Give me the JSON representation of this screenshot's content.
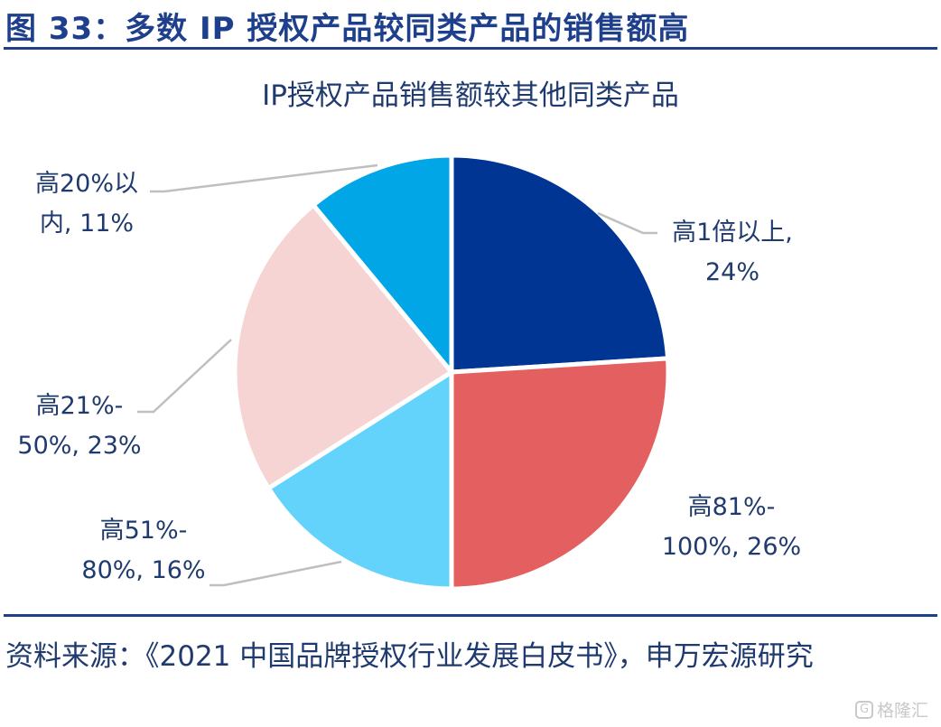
{
  "figure": {
    "title": "图 33：多数 IP 授权产品较同类产品的销售额高"
  },
  "chart_data": {
    "type": "pie",
    "title": "IP授权产品销售额较其他同类产品",
    "slices": [
      {
        "category": "高1倍以上",
        "value": 24,
        "label_line1": "高1倍以上,",
        "label_line2": "24%",
        "color": "#003594"
      },
      {
        "category": "高81%-100%",
        "value": 26,
        "label_line1": "高81%-",
        "label_line2": "100%, 26%",
        "color": "#e46060"
      },
      {
        "category": "高51%-80%",
        "value": 16,
        "label_line1": "高51%-",
        "label_line2": "80%, 16%",
        "color": "#63d3fb"
      },
      {
        "category": "高21%-50%",
        "value": 23,
        "label_line1": "高21%-",
        "label_line2": "50%, 23%",
        "color": "#f7d4d4"
      },
      {
        "category": "高20%以内",
        "value": 11,
        "label_line1": "高20%以",
        "label_line2": "内, 11%",
        "color": "#00a6e6"
      }
    ],
    "start_angle_deg": 0,
    "direction": "clockwise",
    "leader_line_color": "#bfbfbf"
  },
  "source": {
    "text": "资料来源：《2021 中国品牌授权行业发展白皮书》，申万宏源研究"
  },
  "watermark": {
    "icon": "G",
    "text": "格隆汇"
  }
}
